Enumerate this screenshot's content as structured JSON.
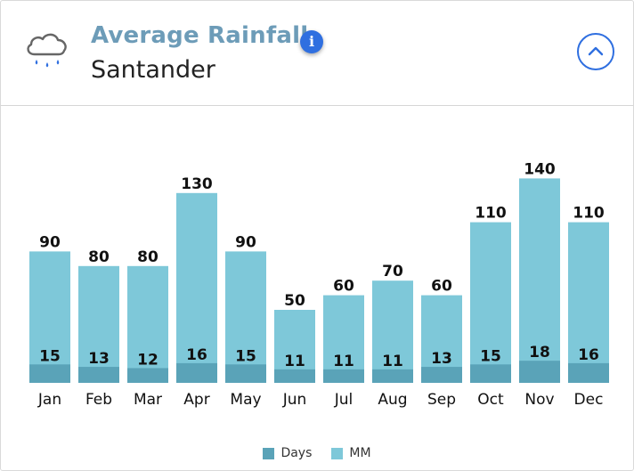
{
  "header": {
    "title": "Average Rainfall",
    "subtitle": "Santander",
    "info_label": "i"
  },
  "colors": {
    "days": "#5aa3b8",
    "mm": "#7ec8d9",
    "accent": "#2f6fe0",
    "title": "#6d9cb8"
  },
  "chart_data": {
    "type": "bar",
    "title": "Average Rainfall",
    "subtitle": "Santander",
    "categories": [
      "Jan",
      "Feb",
      "Mar",
      "Apr",
      "May",
      "Jun",
      "Jul",
      "Aug",
      "Sep",
      "Oct",
      "Nov",
      "Dec"
    ],
    "series": [
      {
        "name": "MM",
        "values": [
          90,
          80,
          80,
          130,
          90,
          50,
          60,
          70,
          60,
          110,
          140,
          110
        ]
      },
      {
        "name": "Days",
        "values": [
          15,
          13,
          12,
          16,
          15,
          11,
          11,
          11,
          13,
          15,
          18,
          16
        ]
      }
    ],
    "xlabel": "",
    "ylabel": "",
    "ylim": [
      0,
      150
    ],
    "grid": false,
    "legend": "bottom"
  }
}
